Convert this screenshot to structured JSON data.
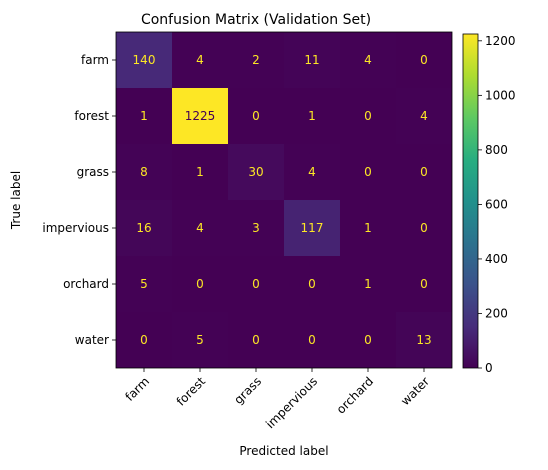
{
  "chart_data": {
    "type": "heatmap",
    "title": "Confusion Matrix (Validation Set)",
    "xlabel": "Predicted label",
    "ylabel": "True label",
    "categories_x": [
      "farm",
      "forest",
      "grass",
      "impervious",
      "orchard",
      "water"
    ],
    "categories_y": [
      "farm",
      "forest",
      "grass",
      "impervious",
      "orchard",
      "water"
    ],
    "matrix": [
      [
        140,
        4,
        2,
        11,
        4,
        0
      ],
      [
        1,
        1225,
        0,
        1,
        0,
        4
      ],
      [
        8,
        1,
        30,
        4,
        0,
        0
      ],
      [
        16,
        4,
        3,
        117,
        1,
        0
      ],
      [
        5,
        0,
        0,
        0,
        1,
        0
      ],
      [
        0,
        5,
        0,
        0,
        0,
        13
      ]
    ],
    "colormap": "viridis",
    "vmin": 0,
    "vmax": 1225,
    "colorbar_ticks": [
      0,
      200,
      400,
      600,
      800,
      1000,
      1200
    ],
    "text_color_light": "#fde725",
    "text_color_dark": "#440154"
  }
}
